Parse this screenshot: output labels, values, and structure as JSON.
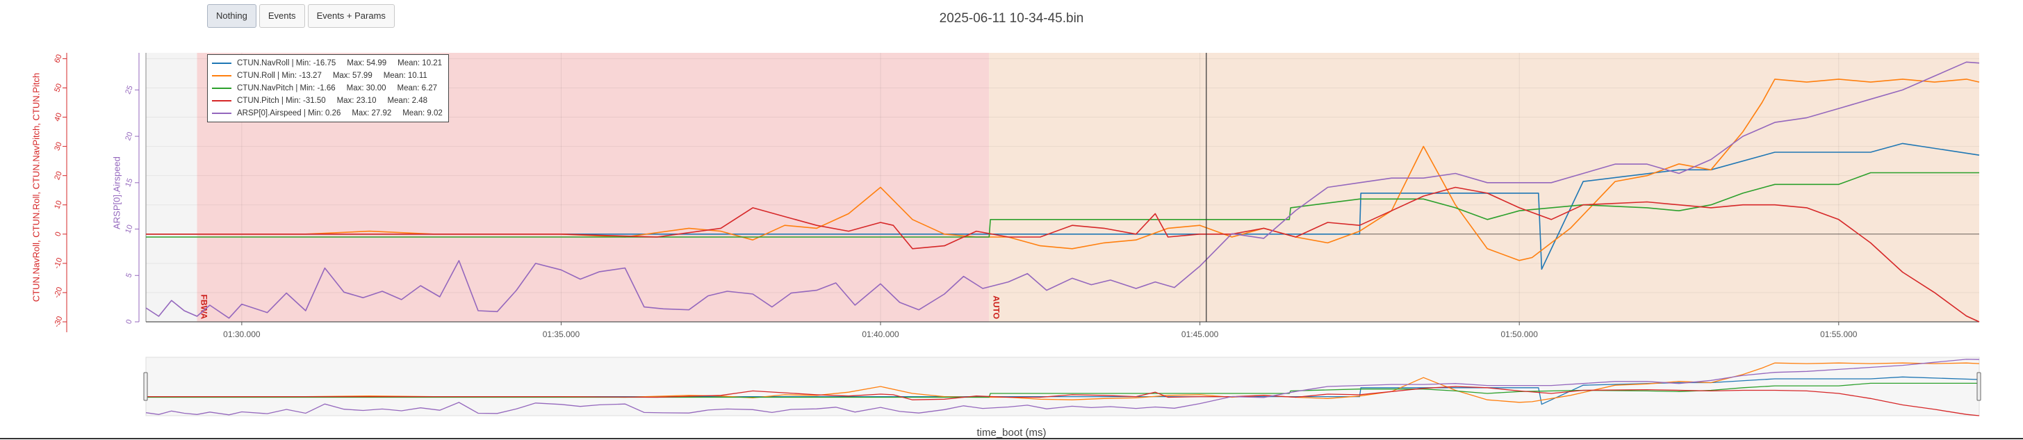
{
  "title": "2025-06-11 10-34-45.bin",
  "toolbar": {
    "buttons": [
      "Nothing",
      "Events",
      "Events + Params"
    ]
  },
  "chart_data": {
    "type": "line",
    "xlabel": "time_boot (ms)",
    "y1label": "CTUN.NavRoll, CTUN.Roll, CTUN.NavPitch, CTUN.Pitch",
    "y2label": "ARSP[0].Airspeed",
    "x_ticks": [
      "01:30.000",
      "01:35.000",
      "01:40.000",
      "01:45.000",
      "01:50.000",
      "01:55.000"
    ],
    "y1_ticks": [
      "-30",
      "-20",
      "-10",
      "0",
      "10",
      "20",
      "30",
      "40",
      "50",
      "60"
    ],
    "y2_ticks": [
      "0",
      "5",
      "10",
      "15",
      "20",
      "25"
    ],
    "xlim_s": [
      88.5,
      117.2
    ],
    "y1lim": [
      -30,
      62
    ],
    "y2lim": [
      0,
      29
    ],
    "colors": {
      "pink": "#f8d6d6",
      "peach": "#f8e6d8",
      "pre": "#f4f4f4",
      "mode_label": "#cc1f1a",
      "ctun_axis": "#d62728",
      "arsp_axis": "#9467bd"
    },
    "modes": [
      {
        "label": "FBWA",
        "start": 89.3,
        "end": 101.7
      },
      {
        "label": "AUTO",
        "start": 101.7,
        "end": 117.2
      }
    ],
    "cursor_x": 105.1,
    "legend_stats": [
      "CTUN.NavRoll | Min: -16.75     Max: 54.99     Mean: 10.21",
      "CTUN.Roll | Min: -13.27     Max: 57.99     Mean: 10.11",
      "CTUN.NavPitch | Min: -1.66     Max: 30.00     Mean: 6.27",
      "CTUN.Pitch | Min: -31.50     Max: 23.10     Mean: 2.48",
      "ARSP[0].Airspeed | Min: 0.26     Max: 27.92     Mean: 9.02"
    ],
    "series": [
      {
        "name": "CTUN.NavRoll",
        "color": "#1f77b4",
        "axis": "y1",
        "x": [
          88.5,
          102.0,
          104.0,
          106.0,
          107.5,
          107.52,
          109.0,
          110.0,
          110.3,
          110.35,
          111.0,
          112.5,
          113.0,
          114.0,
          115.0,
          115.5,
          116.0,
          117.2
        ],
        "y": [
          0,
          0,
          0,
          0,
          0,
          14,
          14,
          14,
          14,
          -12,
          18,
          22,
          22,
          28,
          28,
          28,
          31,
          27
        ]
      },
      {
        "name": "CTUN.Roll",
        "color": "#ff7f0e",
        "axis": "y1",
        "x": [
          88.5,
          91.0,
          92.0,
          93.0,
          94.0,
          95.0,
          96.0,
          97.0,
          97.5,
          98.0,
          98.5,
          99.0,
          99.5,
          100.0,
          100.5,
          101.0,
          101.5,
          102.0,
          102.5,
          103.0,
          103.5,
          104.0,
          104.5,
          105.0,
          105.5,
          106.0,
          106.5,
          107.0,
          107.5,
          108.0,
          108.5,
          109.0,
          109.5,
          110.0,
          110.2,
          110.8,
          111.5,
          112.0,
          112.5,
          113.0,
          113.5,
          113.8,
          114.0,
          114.5,
          115.0,
          115.5,
          116.0,
          116.5,
          117.0,
          117.2
        ],
        "y": [
          0,
          0,
          1,
          0,
          0,
          0,
          -1,
          2,
          1,
          -2,
          3,
          2,
          7,
          16,
          5,
          0,
          -1,
          -1,
          -4,
          -5,
          -3,
          -2,
          2,
          3,
          -1,
          2,
          -1,
          -3,
          1,
          8,
          30,
          10,
          -5,
          -9,
          -8,
          2,
          18,
          20,
          24,
          22,
          35,
          45,
          53,
          52,
          53,
          52,
          53,
          52,
          53,
          52
        ]
      },
      {
        "name": "CTUN.NavPitch",
        "color": "#2ca02c",
        "axis": "y1",
        "x": [
          88.5,
          101.7,
          101.72,
          106.4,
          106.42,
          107.5,
          108.0,
          108.5,
          109.0,
          109.5,
          110.0,
          111.0,
          112.0,
          112.5,
          113.0,
          113.5,
          114.0,
          115.0,
          115.5,
          116.0,
          117.2
        ],
        "y": [
          -1,
          -1,
          5,
          5,
          9,
          12,
          12,
          12,
          9,
          5,
          8,
          10,
          9,
          8,
          10,
          14,
          17,
          17,
          21,
          21,
          21
        ]
      },
      {
        "name": "CTUN.Pitch",
        "color": "#d62728",
        "axis": "y1",
        "x": [
          88.5,
          92.0,
          95.0,
          96.5,
          97.5,
          98.0,
          98.5,
          99.0,
          99.5,
          100.0,
          100.2,
          100.5,
          101.0,
          101.5,
          102.0,
          102.5,
          103.0,
          103.5,
          104.0,
          104.3,
          104.5,
          105.0,
          105.5,
          106.0,
          106.5,
          107.0,
          107.5,
          108.0,
          108.5,
          109.0,
          109.5,
          110.0,
          110.5,
          111.0,
          112.0,
          113.0,
          113.5,
          114.0,
          114.5,
          115.0,
          115.5,
          116.0,
          116.5,
          117.0,
          117.2
        ],
        "y": [
          0,
          0,
          0,
          -1,
          2,
          9,
          6,
          3,
          1,
          4,
          3,
          -5,
          -4,
          1,
          -1,
          -1,
          3,
          2,
          0,
          7,
          -1,
          0,
          0,
          2,
          -1,
          4,
          3,
          8,
          13,
          16,
          14,
          9,
          5,
          10,
          11,
          9,
          10,
          10,
          9,
          5,
          -3,
          -13,
          -20,
          -28,
          -30
        ]
      },
      {
        "name": "ARSP[0].Airspeed",
        "color": "#9467bd",
        "axis": "y2",
        "x": [
          88.5,
          88.7,
          88.9,
          89.1,
          89.3,
          89.5,
          89.8,
          90.0,
          90.4,
          90.7,
          91.0,
          91.3,
          91.6,
          91.9,
          92.2,
          92.5,
          92.8,
          93.1,
          93.4,
          93.7,
          94.0,
          94.3,
          94.6,
          95.0,
          95.3,
          95.6,
          96.0,
          96.3,
          96.6,
          97.0,
          97.3,
          97.6,
          98.0,
          98.3,
          98.6,
          99.0,
          99.3,
          99.6,
          100.0,
          100.3,
          100.6,
          101.0,
          101.3,
          101.6,
          102.0,
          102.3,
          102.6,
          103.0,
          103.3,
          103.6,
          104.0,
          104.3,
          104.6,
          105.0,
          105.5,
          106.0,
          106.5,
          107.0,
          107.5,
          108.0,
          108.5,
          109.0,
          109.5,
          110.0,
          110.5,
          111.0,
          111.5,
          112.0,
          112.5,
          113.0,
          113.5,
          114.0,
          114.5,
          115.0,
          115.5,
          116.0,
          116.5,
          117.0,
          117.2
        ],
        "y": [
          1.5,
          0.6,
          2.3,
          1.2,
          0.6,
          1.8,
          0.4,
          1.9,
          1.0,
          3.1,
          1.2,
          5.8,
          3.2,
          2.6,
          3.3,
          2.4,
          3.9,
          2.7,
          6.6,
          1.2,
          1.1,
          3.4,
          6.3,
          5.6,
          4.6,
          5.4,
          5.8,
          1.6,
          1.4,
          1.3,
          2.8,
          3.3,
          3.0,
          1.6,
          3.1,
          3.4,
          4.2,
          1.8,
          4.1,
          2.1,
          1.3,
          3.0,
          4.9,
          3.6,
          4.3,
          5.2,
          3.4,
          4.7,
          4.0,
          4.5,
          3.6,
          4.3,
          3.7,
          6.0,
          9.5,
          9.0,
          12.0,
          14.5,
          15.0,
          15.5,
          15.5,
          16.0,
          15.0,
          15.0,
          15.0,
          16.0,
          17.0,
          17.0,
          16.0,
          17.5,
          20.0,
          21.5,
          22.0,
          23.0,
          24.0,
          25.0,
          26.5,
          28.0,
          27.9
        ]
      }
    ],
    "overview": {
      "xlim_s": [
        88.5,
        117.2
      ]
    }
  }
}
